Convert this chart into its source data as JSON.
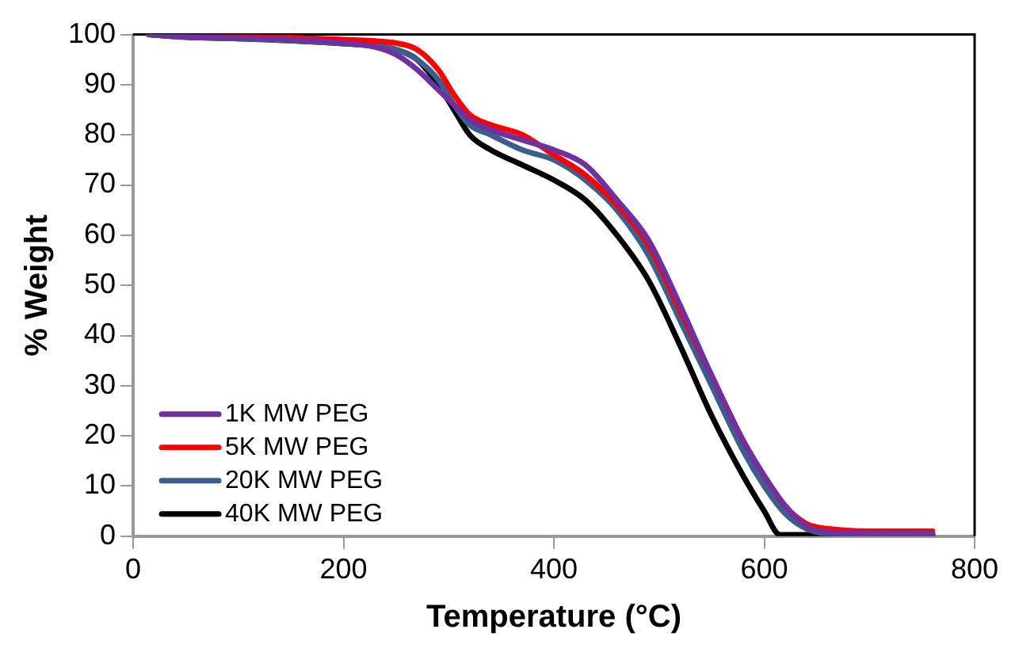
{
  "chart_data": {
    "type": "line",
    "xlabel": "Temperature (°C)",
    "ylabel": "% Weight",
    "xlim": [
      0,
      800
    ],
    "xticks": [
      0,
      200,
      400,
      600,
      800
    ],
    "ylim": [
      0,
      100
    ],
    "yticks": [
      0,
      10,
      20,
      30,
      40,
      50,
      60,
      70,
      80,
      90,
      100
    ],
    "grid": false,
    "legend": "bottom left",
    "marker": "none",
    "line_style": "solid",
    "series": [
      {
        "name": "1K MW PEG",
        "color": "#7030a0",
        "x": [
          15,
          50,
          100,
          150,
          200,
          230,
          250,
          270,
          290,
          305,
          320,
          340,
          370,
          400,
          430,
          460,
          490,
          520,
          550,
          580,
          600,
          620,
          640,
          660,
          700,
          760
        ],
        "values": [
          100,
          99.5,
          99.3,
          99,
          98.3,
          97.5,
          96,
          93,
          89,
          86,
          83,
          81,
          79,
          77,
          74,
          67,
          59,
          46,
          32,
          19,
          12,
          6,
          2,
          0.8,
          0.5,
          0.5
        ]
      },
      {
        "name": "5K MW PEG",
        "color": "#ff0000",
        "x": [
          15,
          50,
          100,
          150,
          200,
          230,
          250,
          270,
          290,
          305,
          320,
          340,
          370,
          400,
          430,
          460,
          490,
          520,
          550,
          580,
          600,
          620,
          640,
          660,
          700,
          760
        ],
        "values": [
          100,
          99.8,
          99.6,
          99.4,
          99,
          98.7,
          98.3,
          97,
          93,
          88,
          84,
          82,
          80,
          76,
          72,
          66,
          58,
          45,
          32,
          19,
          12,
          6,
          2.5,
          1.5,
          1,
          1
        ]
      },
      {
        "name": "20K MW PEG",
        "color": "#3a5f8f",
        "x": [
          15,
          50,
          100,
          150,
          200,
          230,
          250,
          270,
          290,
          305,
          320,
          340,
          370,
          400,
          430,
          460,
          490,
          520,
          550,
          580,
          600,
          620,
          640,
          660,
          700,
          760
        ],
        "values": [
          100,
          99.5,
          99.2,
          98.8,
          98.2,
          97.7,
          97,
          95,
          91,
          86,
          82,
          80,
          77,
          75,
          71,
          65,
          56,
          43,
          30,
          17,
          10,
          4.5,
          1.5,
          0.6,
          0.5,
          0.5
        ]
      },
      {
        "name": "40K MW PEG",
        "color": "#000000",
        "x": [
          15,
          50,
          100,
          150,
          200,
          230,
          250,
          270,
          290,
          305,
          320,
          340,
          370,
          400,
          430,
          460,
          490,
          520,
          550,
          580,
          600,
          615,
          640,
          760
        ],
        "values": [
          100,
          99.5,
          99.2,
          98.8,
          98.2,
          97.7,
          97,
          95,
          90,
          85,
          80,
          77,
          74,
          71,
          67,
          60,
          51,
          38,
          24,
          12,
          5,
          0.3,
          0.3,
          0.3
        ]
      }
    ]
  }
}
